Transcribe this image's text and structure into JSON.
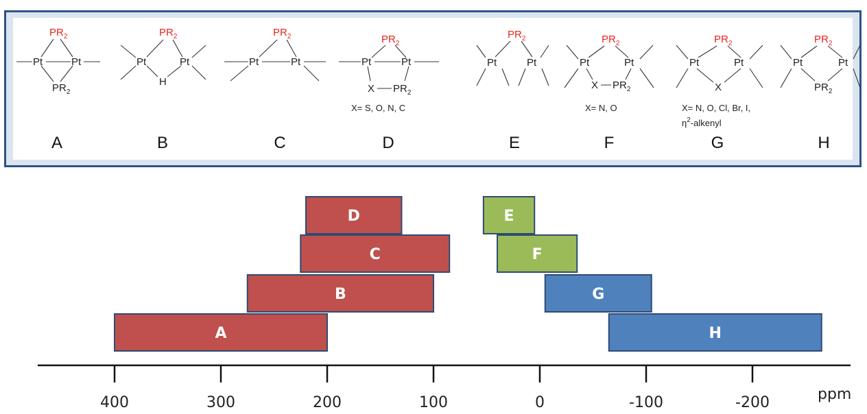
{
  "structures": {
    "atom_pt": "Pt",
    "atom_pr": "PR",
    "atom_pr_sub": "2",
    "atom_h": "H",
    "atom_x": "X",
    "caption_d": "X= S, O, N, C",
    "caption_f": "X= N, O",
    "caption_g_line1": "X= N, O, Cl, Br, I,",
    "caption_g_eta": "η",
    "caption_g_sup": "2",
    "caption_g_rest": "-alkenyl",
    "letters": [
      "A",
      "B",
      "C",
      "D",
      "E",
      "F",
      "G",
      "H"
    ]
  },
  "chart_data": {
    "type": "bar",
    "orientation": "horizontal-ranges",
    "xlabel": "ppm",
    "x_axis_reversed": true,
    "xlim": [
      470,
      -275
    ],
    "ticks": [
      400,
      300,
      200,
      100,
      0,
      -100,
      -200
    ],
    "tick_labels": [
      "400",
      "300",
      "200",
      "100",
      "0",
      "-100",
      "-200"
    ],
    "ranges": [
      {
        "label": "A",
        "from": 400,
        "to": 200,
        "color": "#c0504d",
        "row": 0
      },
      {
        "label": "B",
        "from": 275,
        "to": 100,
        "color": "#c0504d",
        "row": 1
      },
      {
        "label": "C",
        "from": 225,
        "to": 85,
        "color": "#c0504d",
        "row": 2
      },
      {
        "label": "D",
        "from": 220,
        "to": 130,
        "color": "#c0504d",
        "row": 3
      },
      {
        "label": "E",
        "from": 53,
        "to": 5,
        "color": "#9bbb59",
        "row": 3
      },
      {
        "label": "F",
        "from": 40,
        "to": -35,
        "color": "#9bbb59",
        "row": 2
      },
      {
        "label": "G",
        "from": -5,
        "to": -105,
        "color": "#4f81bd",
        "row": 1
      },
      {
        "label": "H",
        "from": -65,
        "to": -265,
        "color": "#4f81bd",
        "row": 0
      }
    ]
  }
}
